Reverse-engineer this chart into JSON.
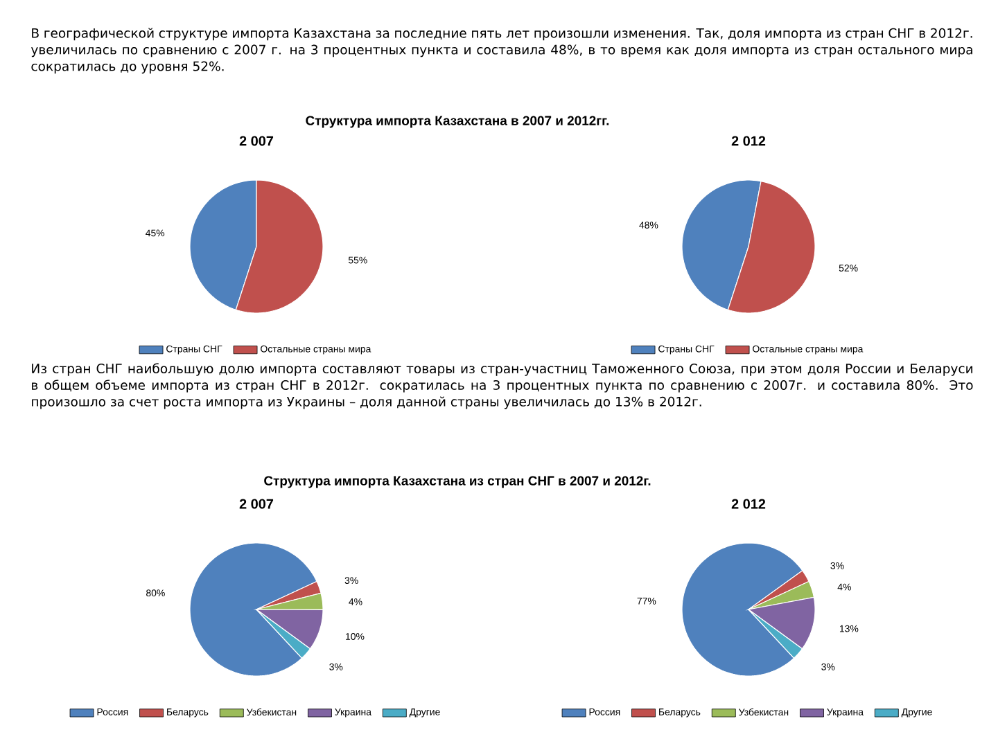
{
  "chart_data": [
    {
      "type": "pie",
      "title": "2 007",
      "categories": [
        "Страны СНГ",
        "Остальные страны мира"
      ],
      "values": [
        45,
        55
      ],
      "colors": [
        "#4f81bd",
        "#c0504d"
      ],
      "value_labels": [
        "45%",
        "55%"
      ],
      "legend": "bottom",
      "annotations": [
        "В географической структуре импорта Казахстана за последние пять лет произошли изменения. Так, доля импорта из стран СНГ в 2012г. увеличилась по сравнению с 2007 г. на 3 процентных пункта и составила 48%, в то время как доля импорта из стран остального мира сократилась до уровня 52%.",
        "Структура импорта Казахстана в 2007 и 2012гг."
      ]
    },
    {
      "type": "pie",
      "title": "2 012",
      "categories": [
        "Страны СНГ",
        "Остальные страны мира"
      ],
      "values": [
        48,
        52
      ],
      "colors": [
        "#4f81bd",
        "#c0504d"
      ],
      "value_labels": [
        "48%",
        "52%"
      ],
      "legend": "bottom"
    },
    {
      "type": "pie",
      "title": "2 007",
      "categories": [
        "Россия",
        "Беларусь",
        "Узбекистан",
        "Украина",
        "Другие"
      ],
      "values": [
        80,
        3,
        4,
        10,
        3
      ],
      "colors": [
        "#4f81bd",
        "#c0504d",
        "#9bbb59",
        "#8064a2",
        "#4bacc6"
      ],
      "value_labels": [
        "80%",
        "3%",
        "4%",
        "10%",
        "3%"
      ],
      "legend": "bottom",
      "annotations": [
        "Из стран СНГ наибольшую долю импорта составляют товары из стран-участниц Таможенного Союза, при этом доля России и Беларуси в общем объеме импорта из стран СНГ в 2012г. сократилась на 3 процентных пункта по сравнению с 2007г. и составила 80%. Это произошло за счет роста импорта из Украины – доля данной страны увеличилась до 13% в 2012г.",
        "Структура импорта Казахстана из стран СНГ в 2007 и 2012г."
      ]
    },
    {
      "type": "pie",
      "title": "2 012",
      "categories": [
        "Россия",
        "Беларусь",
        "Узбекистан",
        "Украина",
        "Другие"
      ],
      "values": [
        77,
        3,
        4,
        13,
        3
      ],
      "colors": [
        "#4f81bd",
        "#c0504d",
        "#9bbb59",
        "#8064a2",
        "#4bacc6"
      ],
      "value_labels": [
        "77%",
        "3%",
        "4%",
        "13%",
        "3%"
      ],
      "legend": "bottom"
    }
  ]
}
